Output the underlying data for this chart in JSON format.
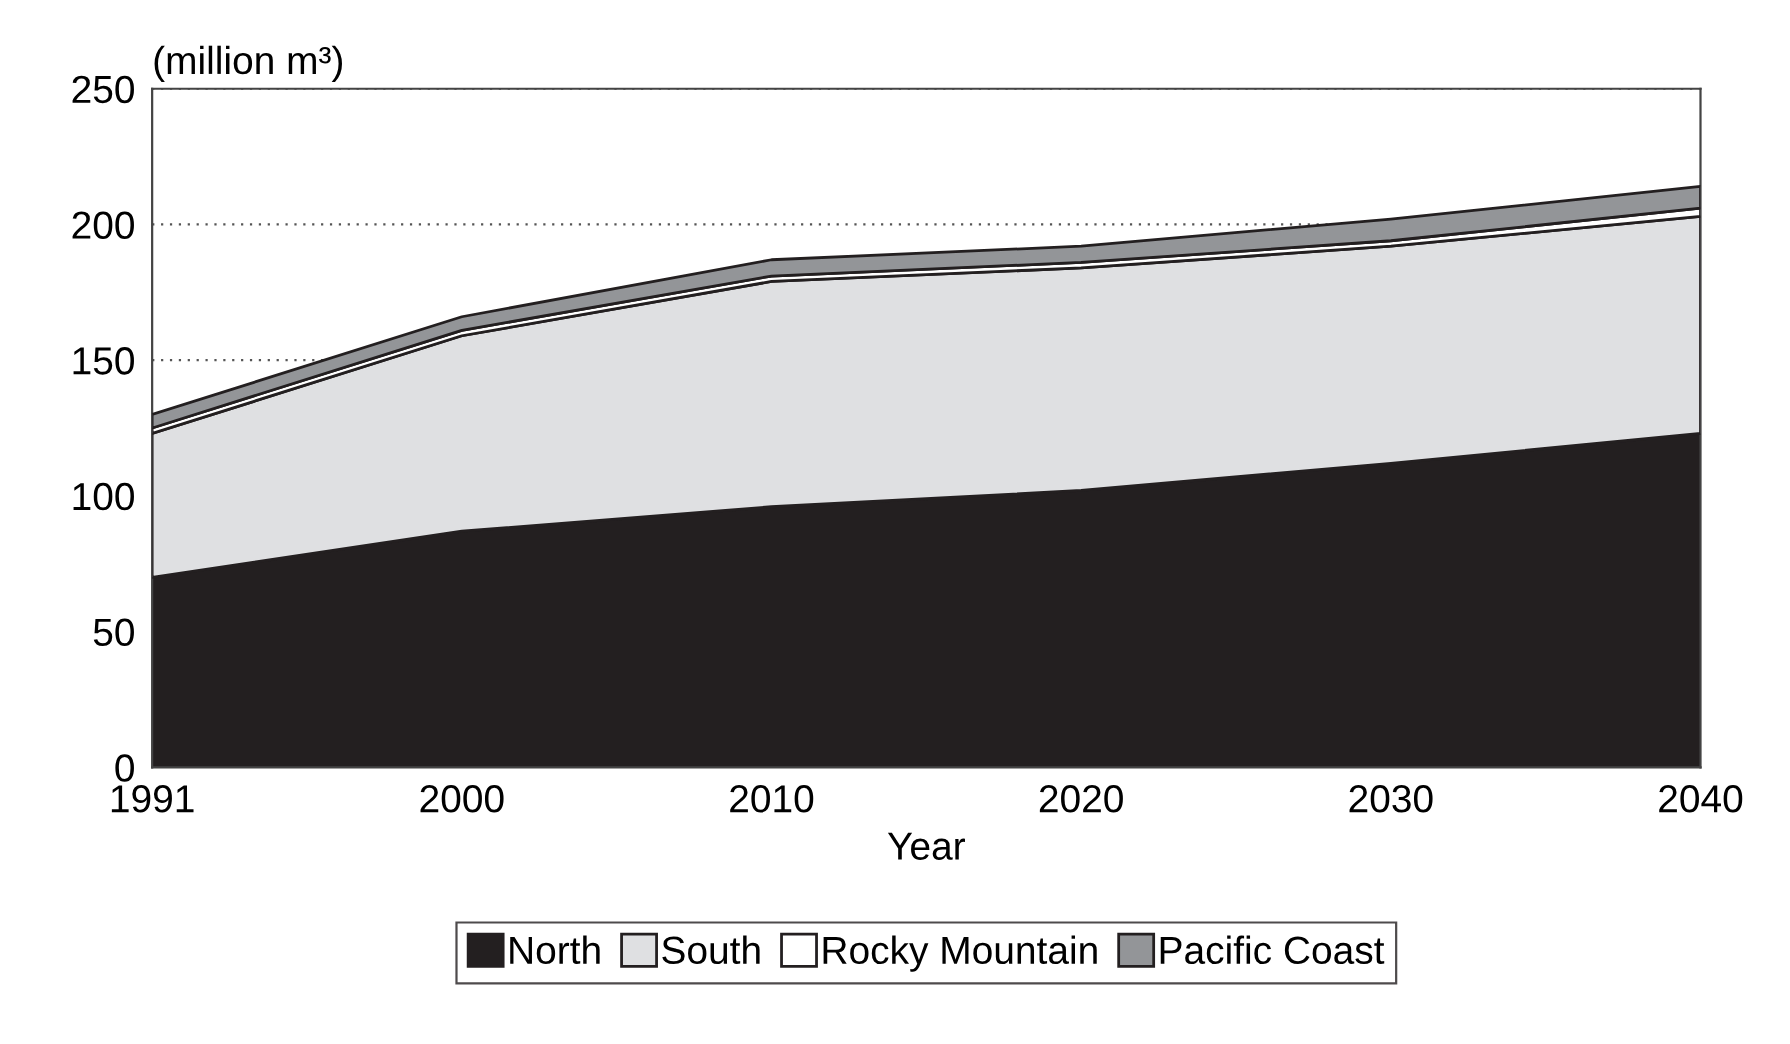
{
  "chart_data": {
    "type": "area",
    "stacked": true,
    "ylabel": "(million m³)",
    "xlabel": "Year",
    "categories": [
      "1991",
      "2000",
      "2010",
      "2020",
      "2030",
      "2040"
    ],
    "series": [
      {
        "name": "North",
        "color": "#231f20",
        "values": [
          70,
          87,
          96,
          102,
          112,
          123
        ]
      },
      {
        "name": "South",
        "color": "#dfe0e2",
        "values": [
          53,
          72,
          83,
          82,
          80,
          80
        ]
      },
      {
        "name": "Rocky Mountain",
        "color": "#ffffff",
        "values": [
          2,
          2,
          2,
          2,
          2,
          3
        ]
      },
      {
        "name": "Pacific Coast",
        "color": "#939598",
        "values": [
          5,
          5,
          6,
          6,
          8,
          8
        ]
      }
    ],
    "ylim": [
      0,
      250
    ],
    "yticks": [
      0,
      50,
      100,
      150,
      200,
      250
    ],
    "grid": "y",
    "legend": "bottom"
  }
}
